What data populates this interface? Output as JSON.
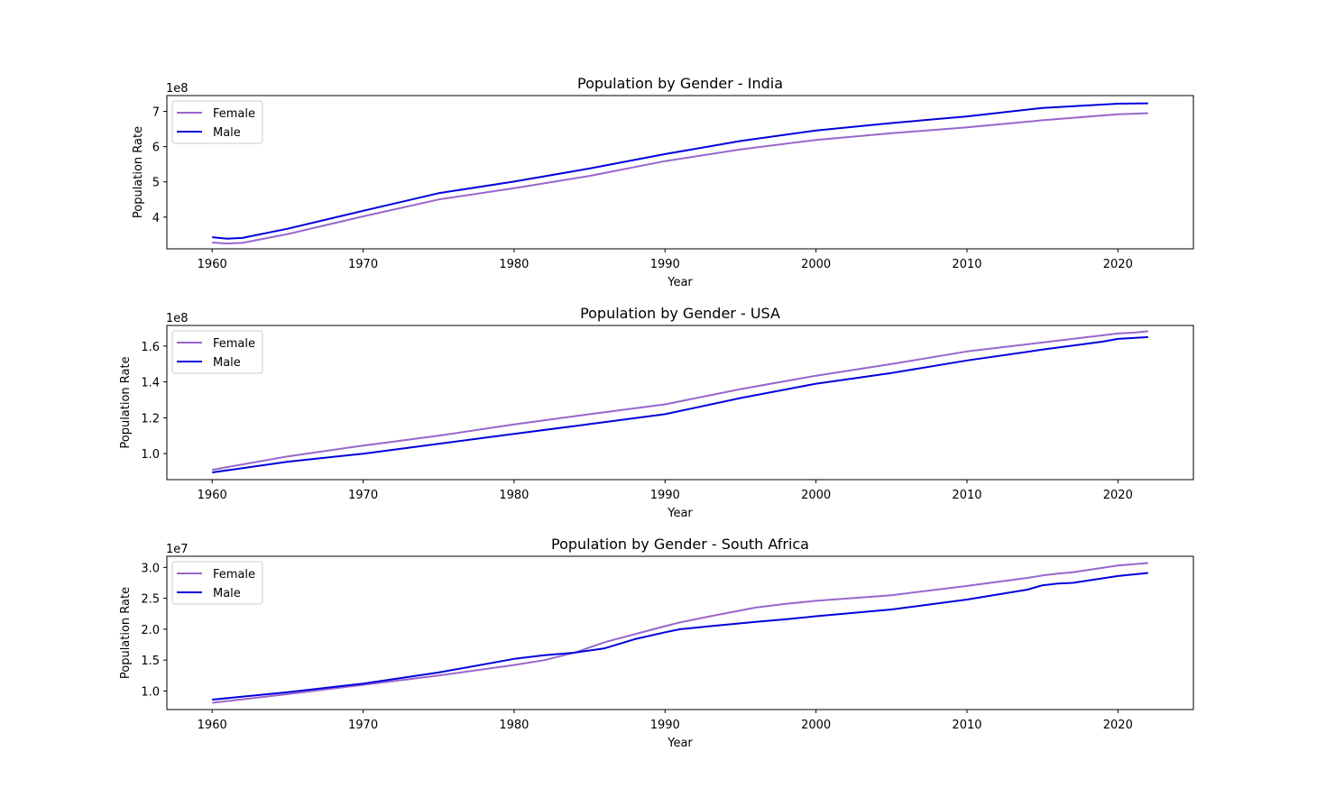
{
  "chart_data": [
    {
      "type": "line",
      "title": "Population by Gender - India",
      "xlabel": "Year",
      "ylabel": "Population Rate",
      "offset_label": "1e8",
      "xlim": [
        1957,
        2025
      ],
      "ylim": [
        3.1,
        7.45
      ],
      "xticks": [
        1960,
        1970,
        1980,
        1990,
        2000,
        2010,
        2020
      ],
      "yticks": [
        4,
        5,
        6,
        7
      ],
      "ytick_labels": [
        "4",
        "5",
        "6",
        "7"
      ],
      "legend_position": "upper left",
      "x": [
        1960,
        1961,
        1962,
        1965,
        1970,
        1975,
        1980,
        1985,
        1990,
        1995,
        2000,
        2005,
        2010,
        2015,
        2020,
        2022
      ],
      "series": [
        {
          "name": "Female",
          "color": "#9966cc",
          "values": [
            3.28,
            3.25,
            3.27,
            3.52,
            4.02,
            4.5,
            4.82,
            5.17,
            5.59,
            5.92,
            6.19,
            6.38,
            6.55,
            6.75,
            6.92,
            6.95
          ]
        },
        {
          "name": "Male",
          "color": "#0000dd",
          "values": [
            3.43,
            3.39,
            3.41,
            3.67,
            4.18,
            4.68,
            5.01,
            5.38,
            5.79,
            6.16,
            6.46,
            6.67,
            6.86,
            7.1,
            7.22,
            7.23
          ]
        }
      ]
    },
    {
      "type": "line",
      "title": "Population by Gender - USA",
      "xlabel": "Year",
      "ylabel": "Population Rate",
      "offset_label": "1e8",
      "xlim": [
        1957,
        2025
      ],
      "ylim": [
        0.855,
        1.715
      ],
      "xticks": [
        1960,
        1970,
        1980,
        1990,
        2000,
        2010,
        2020
      ],
      "yticks": [
        1.0,
        1.2,
        1.4,
        1.6
      ],
      "ytick_labels": [
        "1.0",
        "1.2",
        "1.4",
        "1.6"
      ],
      "legend_position": "upper left",
      "x": [
        1960,
        1965,
        1970,
        1975,
        1980,
        1985,
        1990,
        1995,
        2000,
        2005,
        2010,
        2015,
        2019,
        2020,
        2021,
        2022
      ],
      "series": [
        {
          "name": "Female",
          "color": "#9966cc",
          "values": [
            0.91,
            0.985,
            1.045,
            1.1,
            1.163,
            1.22,
            1.275,
            1.36,
            1.435,
            1.5,
            1.57,
            1.62,
            1.66,
            1.67,
            1.675,
            1.683
          ]
        },
        {
          "name": "Male",
          "color": "#0000dd",
          "values": [
            0.895,
            0.955,
            1.0,
            1.055,
            1.11,
            1.165,
            1.22,
            1.31,
            1.39,
            1.45,
            1.52,
            1.58,
            1.625,
            1.64,
            1.645,
            1.65
          ]
        }
      ]
    },
    {
      "type": "line",
      "title": "Population by Gender  - South Africa",
      "xlabel": "Year",
      "ylabel": "Population Rate",
      "offset_label": "1e7",
      "xlim": [
        1957,
        2025
      ],
      "ylim": [
        7.0,
        31.8
      ],
      "xticks": [
        1960,
        1970,
        1980,
        1990,
        2000,
        2010,
        2020
      ],
      "yticks": [
        10,
        15,
        20,
        25,
        30
      ],
      "ytick_labels": [
        "1.0",
        "1.5",
        "2.0",
        "2.5",
        "3.0"
      ],
      "legend_position": "upper left",
      "x": [
        1960,
        1965,
        1970,
        1975,
        1980,
        1982,
        1984,
        1986,
        1988,
        1990,
        1991,
        1993,
        1996,
        1998,
        2000,
        2005,
        2010,
        2014,
        2015,
        2016,
        2017,
        2020,
        2022
      ],
      "series": [
        {
          "name": "Female",
          "color": "#9966cc",
          "values": [
            8.1,
            9.5,
            11.0,
            12.5,
            14.2,
            15.0,
            16.2,
            17.9,
            19.2,
            20.5,
            21.1,
            22.1,
            23.5,
            24.1,
            24.6,
            25.5,
            27.0,
            28.3,
            28.7,
            29.0,
            29.2,
            30.3,
            30.7
          ]
        },
        {
          "name": "Male",
          "color": "#0000dd",
          "values": [
            8.6,
            9.8,
            11.2,
            13.0,
            15.2,
            15.8,
            16.2,
            16.9,
            18.4,
            19.5,
            20.0,
            20.5,
            21.2,
            21.6,
            22.1,
            23.2,
            24.8,
            26.4,
            27.1,
            27.4,
            27.5,
            28.6,
            29.1
          ]
        }
      ]
    }
  ]
}
